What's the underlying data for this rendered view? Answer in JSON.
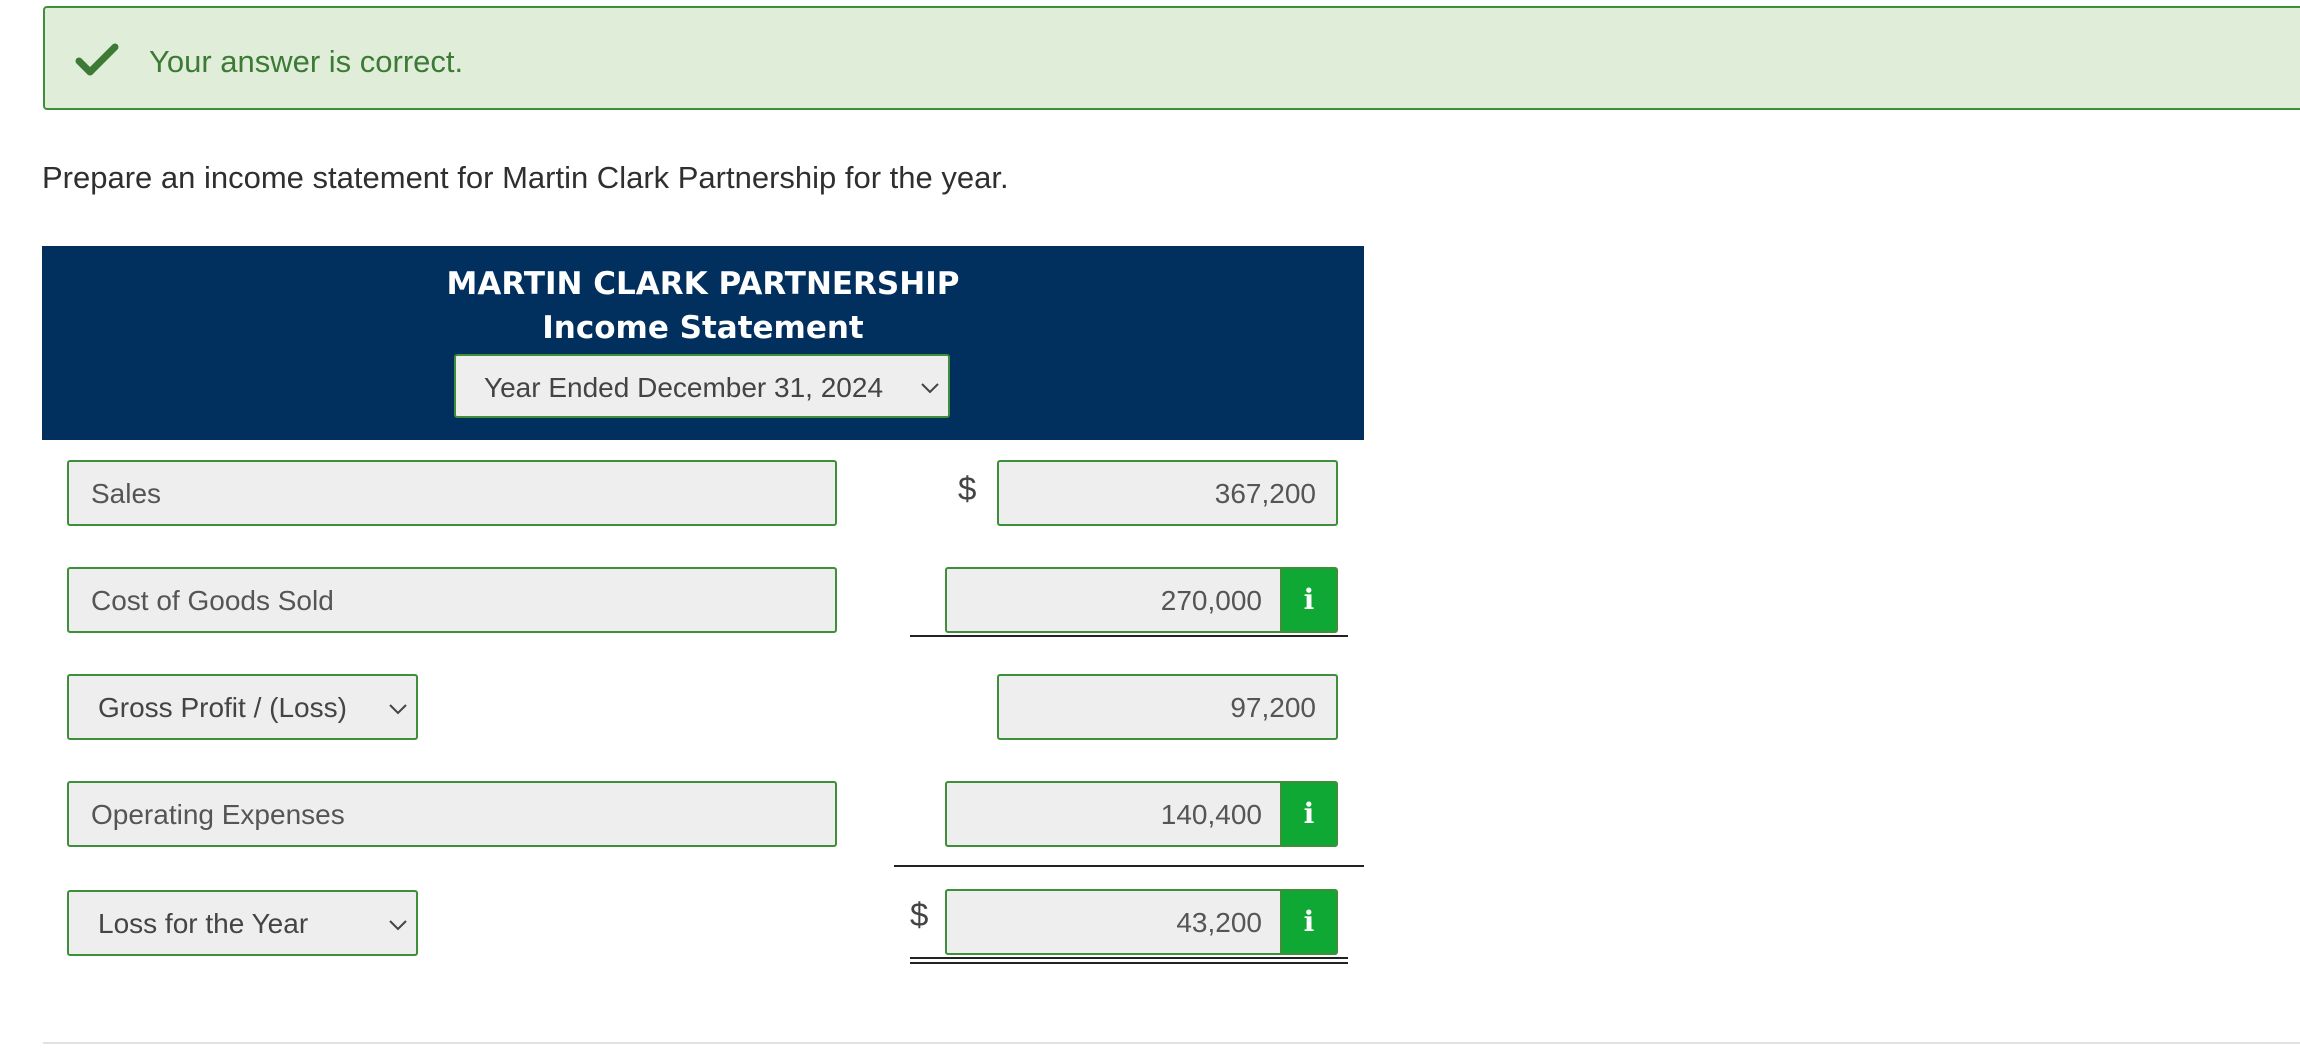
{
  "feedback": {
    "message": "Your answer is correct.",
    "icon": "checkmark-icon",
    "color": "#3e8e3a"
  },
  "instruction": "Prepare an income statement for Martin Clark Partnership for the year.",
  "statement": {
    "company": "MARTIN CLARK PARTNERSHIP",
    "title": "Income Statement",
    "period": "Year Ended December 31, 2024",
    "header_color": "#02305e"
  },
  "rows": {
    "sales": {
      "label": "Sales",
      "currency": "$",
      "amount": "367,200"
    },
    "cogs": {
      "label": "Cost of Goods Sold",
      "amount": "270,000"
    },
    "gross_profit": {
      "label": "Gross Profit / (Loss)",
      "amount": "97,200"
    },
    "operating_expenses": {
      "label": "Operating Expenses",
      "amount": "140,400"
    },
    "net_result": {
      "label": "Loss for the Year",
      "currency": "$",
      "amount": "43,200"
    }
  },
  "info_button": {
    "glyph": "i",
    "icon": "info-icon",
    "color": "#10a834"
  }
}
